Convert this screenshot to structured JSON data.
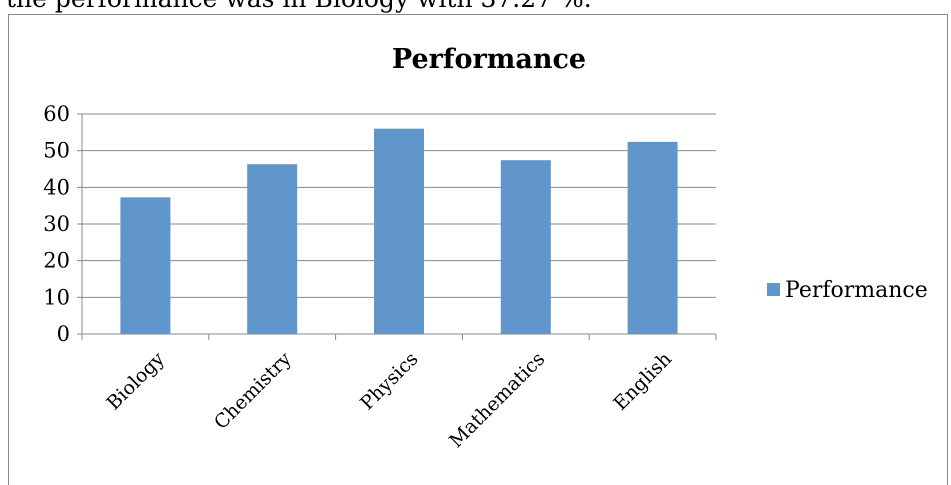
{
  "document": {
    "text_above": "the performance was in Biology with 37.27 %."
  },
  "chart_data": {
    "type": "bar",
    "title": "Performance",
    "xlabel": "",
    "ylabel": "",
    "categories": [
      "Biology",
      "Chemistry",
      "Physics",
      "Mathematics",
      "English"
    ],
    "series": [
      {
        "name": "Performance",
        "values": [
          37.27,
          46.3,
          56,
          47.4,
          52.4
        ],
        "color": "#6096CC"
      }
    ],
    "ylim": [
      0,
      60
    ],
    "yticks": [
      0,
      10,
      20,
      30,
      40,
      50,
      60
    ],
    "grid": true,
    "legend": "right"
  }
}
